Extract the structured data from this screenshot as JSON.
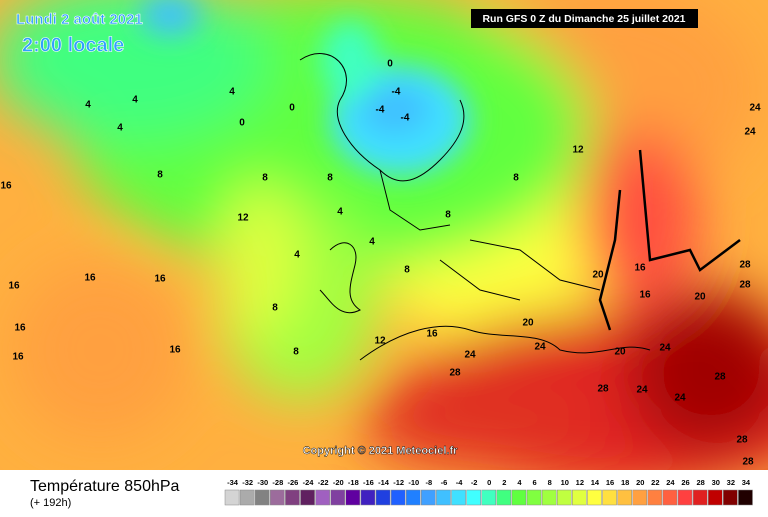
{
  "header": {
    "date": "Lundi 2 août 2021",
    "time": "2:00 locale",
    "run": "Run GFS 0 Z du Dimanche 25 juillet 2021"
  },
  "copyright": "Copyright © 2021 Meteociel.fr",
  "footer": {
    "title": "Température 850hPa",
    "lead": "(+ 192h)"
  },
  "colorbar": {
    "ticks": [
      -34,
      -32,
      -30,
      -28,
      -26,
      -24,
      -22,
      -20,
      -18,
      -16,
      -14,
      -12,
      -10,
      -8,
      -6,
      -4,
      -2,
      0,
      2,
      4,
      6,
      8,
      10,
      12,
      14,
      16,
      18,
      20,
      22,
      24,
      26,
      28,
      30,
      32,
      34
    ],
    "colors": [
      "#d4d4d4",
      "#ababab",
      "#828282",
      "#9c6c9c",
      "#804080",
      "#602060",
      "#a060c0",
      "#8040a0",
      "#6000a0",
      "#4020c0",
      "#2040e0",
      "#2060ff",
      "#2080ff",
      "#40a0ff",
      "#40c0ff",
      "#40e0ff",
      "#40ffff",
      "#40ffc0",
      "#40ff80",
      "#60ff40",
      "#80ff40",
      "#a0ff40",
      "#c0ff40",
      "#e0ff40",
      "#ffff40",
      "#ffe040",
      "#ffc040",
      "#ffa040",
      "#ff8040",
      "#ff6040",
      "#ff4040",
      "#e02020",
      "#c00000",
      "#800000",
      "#200000"
    ]
  },
  "contour_labels": [
    16,
    16,
    16,
    16,
    16,
    16,
    16,
    12,
    12,
    12,
    8,
    8,
    8,
    8,
    8,
    8,
    8,
    8,
    4,
    4,
    4,
    4,
    4,
    4,
    4,
    0,
    0,
    0,
    -4,
    -4,
    -4,
    20,
    20,
    20,
    20,
    24,
    24,
    24,
    24,
    24,
    24,
    24,
    28,
    28,
    28,
    28,
    28,
    28,
    28,
    16,
    16,
    16
  ]
}
